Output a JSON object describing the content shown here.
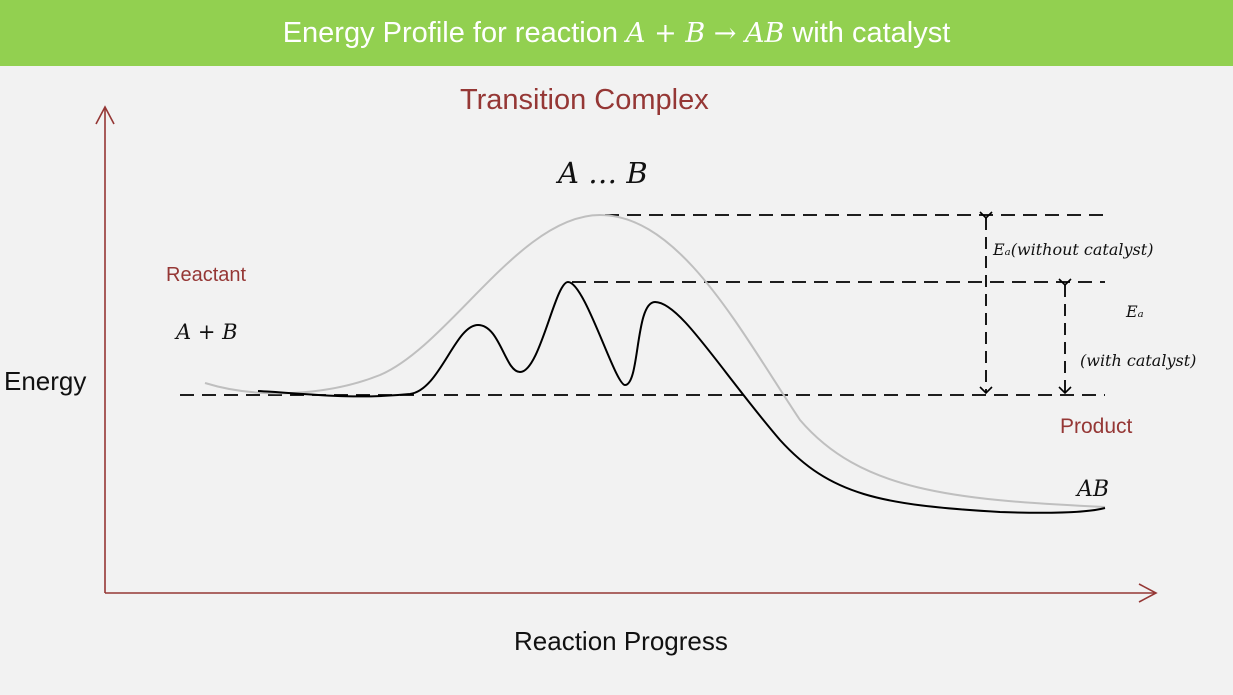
{
  "header": {
    "prefix": "Energy Profile for reaction ",
    "equation": "A + B → AB",
    "suffix": " with catalyst"
  },
  "labels": {
    "transition_complex": "Transition Complex",
    "transition_formula": "A … B",
    "reactant": "Reactant",
    "reactant_formula": "A + B",
    "product": "Product",
    "product_formula": "AB",
    "y_axis": "Energy",
    "x_axis": "Reaction Progress",
    "ea_without": "Eₐ(without catalyst)",
    "ea_with_symbol": "Eₐ",
    "ea_with_note": "(with catalyst)"
  },
  "colors": {
    "header_bg": "#92d050",
    "label_text": "#953735",
    "axis": "#953735",
    "uncatalyzed_curve": "#bfbfbf",
    "catalyzed_curve": "#000000"
  }
}
